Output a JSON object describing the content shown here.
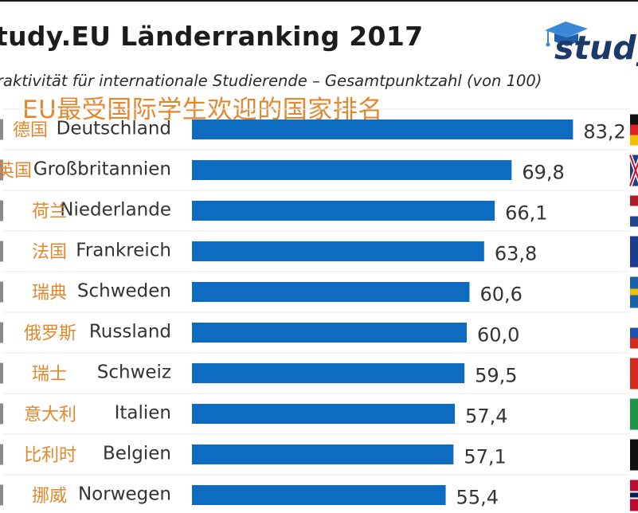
{
  "header": {
    "title": "tudy.EU Länderranking 2017",
    "subtitle": "raktivität für internationale Studierende – Gesamtpunktzahl (von 100)",
    "chinese_title": "EU最受国际学生欢迎的国家排名",
    "logo_text": "study"
  },
  "colors": {
    "bar": "#0d6cc0",
    "chinese_text": "#e3872e",
    "logo": "#1b3a6b"
  },
  "chart_data": {
    "type": "bar",
    "orientation": "horizontal",
    "title": "tudy.EU Länderranking 2017",
    "subtitle": "raktivität für internationale Studierende – Gesamtpunktzahl (von 100)",
    "categories": [
      "Deutschland",
      "Großbritannien",
      "Niederlande",
      "Frankreich",
      "Schweden",
      "Russland",
      "Schweiz",
      "Italien",
      "Belgien",
      "Norwegen"
    ],
    "categories_cn": [
      "德国",
      "英国",
      "荷兰",
      "法国",
      "瑞典",
      "俄罗斯",
      "瑞士",
      "意大利",
      "比利时",
      "挪威"
    ],
    "values": [
      83.2,
      69.8,
      66.1,
      63.8,
      60.6,
      60.0,
      59.5,
      57.4,
      57.1,
      55.4
    ],
    "value_labels": [
      "83,2",
      "69,8",
      "66,1",
      "63,8",
      "60,6",
      "60,0",
      "59,5",
      "57,4",
      "57,1",
      "55,4"
    ],
    "flags": [
      "germany-flag",
      "uk-flag",
      "netherlands-flag",
      "france-flag",
      "sweden-flag",
      "russia-flag",
      "switzerland-flag",
      "italy-flag",
      "belgium-flag",
      "norway-flag"
    ],
    "xlim": [
      0,
      100
    ]
  }
}
